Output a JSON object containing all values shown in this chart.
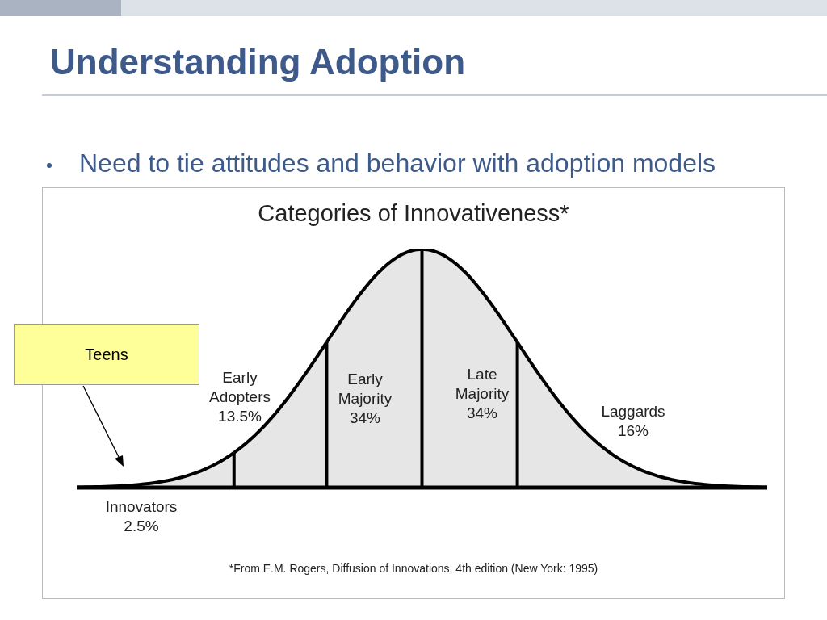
{
  "chart_data": {
    "type": "other",
    "title": "Understanding Adoption",
    "subtitle": "Need to tie attitudes and behavior with adoption models",
    "xlabel": "Categories of Innovativeness*",
    "categories": [
      "Innovators",
      "Early Adopters",
      "Early Majority",
      "Late Majority",
      "Laggards"
    ],
    "values": [
      2.5,
      13.5,
      34,
      34,
      16
    ],
    "value_labels": [
      "2.5%",
      "13.5%",
      "34%",
      "34%",
      "16%"
    ],
    "color": "#e6e6e6",
    "annotations": [
      "Teens",
      "*From E.M. Rogers, Diffusion of Innovations, 4th edition (New York: 1995)"
    ]
  }
}
